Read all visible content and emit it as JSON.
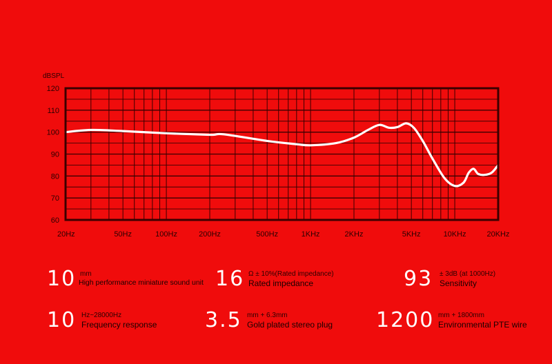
{
  "colors": {
    "background": "#f00c0c",
    "grid": "#3a0000",
    "curve": "#ffffff",
    "label": "#2a0000"
  },
  "chart_data": {
    "type": "line",
    "title": "",
    "ylabel": "dBSPL",
    "xlabel": "",
    "x_scale": "log",
    "xlim": [
      20,
      20000
    ],
    "ylim": [
      60,
      120
    ],
    "grid": true,
    "y_ticks": [
      120,
      110,
      100,
      90,
      80,
      70,
      60
    ],
    "x_ticks": [
      {
        "label": "20Hz",
        "value": 20
      },
      {
        "label": "50Hz",
        "value": 50
      },
      {
        "label": "100Hz",
        "value": 100
      },
      {
        "label": "200Hz",
        "value": 200
      },
      {
        "label": "500Hz",
        "value": 500
      },
      {
        "label": "1KHz",
        "value": 1000
      },
      {
        "label": "2KHz",
        "value": 2000
      },
      {
        "label": "5KHz",
        "value": 5000
      },
      {
        "label": "10KHz",
        "value": 10000
      },
      {
        "label": "20KHz",
        "value": 20000
      }
    ],
    "series": [
      {
        "x": [
          20,
          30,
          50,
          100,
          200,
          250,
          500,
          800,
          1000,
          1500,
          2000,
          2500,
          3000,
          3500,
          4000,
          4600,
          5200,
          6000,
          7000,
          8500,
          10000,
          11500,
          12500,
          13500,
          14500,
          16000,
          18000,
          20000
        ],
        "y": [
          100,
          101,
          100.5,
          99.5,
          98.8,
          99,
          96,
          94.5,
          94,
          95,
          97.5,
          101,
          103.3,
          102,
          102.3,
          104,
          102,
          96,
          88,
          79,
          75.5,
          77,
          81.5,
          83.3,
          81,
          80.5,
          81.5,
          85
        ]
      }
    ]
  },
  "specs": [
    {
      "value": "10",
      "sub": "mm",
      "label": "High performance miniature sound unit"
    },
    {
      "value": "16",
      "sub": "Ω ± 10%(Rated impedance)",
      "label": "Rated impedance"
    },
    {
      "value": "93",
      "sub": "± 3dB (at 1000Hz)",
      "label": "Sensitivity"
    },
    {
      "value": "10",
      "sub": "Hz~28000Hz",
      "label": "Frequency response"
    },
    {
      "value": "3.5",
      "sub": "mm + 6.3mm",
      "label": "Gold plated stereo plug"
    },
    {
      "value": "1200",
      "sub": "mm + 1800mm",
      "label": "Environmental PTE wire"
    }
  ]
}
